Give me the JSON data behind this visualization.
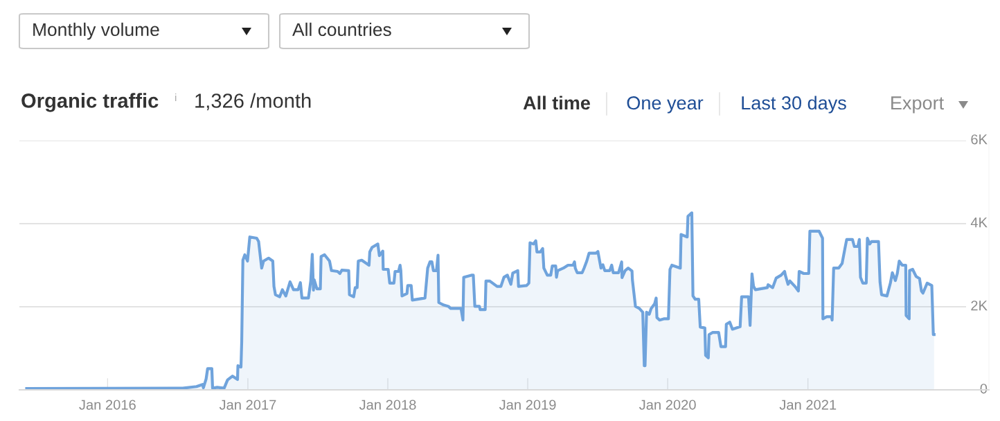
{
  "chart_data": {
    "type": "area",
    "title": "Organic traffic",
    "subtitle": "1,326 /month",
    "annotations": [
      "Monthly volume",
      "All countries",
      "All time",
      "One year",
      "Last 30 days",
      "Export",
      "i"
    ],
    "xlim": [
      "2015-05-16",
      "2022-04-18"
    ],
    "ylim": [
      0,
      6000
    ],
    "xticks": [
      {
        "value": "2016-01-01",
        "label": "Jan 2016"
      },
      {
        "value": "2017-01-01",
        "label": "Jan 2017"
      },
      {
        "value": "2018-01-01",
        "label": "Jan 2018"
      },
      {
        "value": "2019-01-01",
        "label": "Jan 2019"
      },
      {
        "value": "2020-01-01",
        "label": "Jan 2020"
      },
      {
        "value": "2021-01-01",
        "label": "Jan 2021"
      }
    ],
    "yticks": [
      0,
      {
        "value": 2000,
        "label": "2K"
      },
      {
        "value": 4000,
        "label": "4K"
      },
      {
        "value": 6000,
        "label": "6K"
      }
    ],
    "grid": "y",
    "marker": "none",
    "line_style": "solid",
    "series": [
      {
        "color": "#6fa3dc",
        "x": [
          "2015-06-04",
          "2016-07-15",
          "2016-08-20",
          "2016-09-05",
          "2016-09-07",
          "2016-09-14",
          "2016-09-18",
          "2016-09-29",
          "2016-10-01",
          "2016-10-13",
          "2016-10-31",
          "2016-11-09",
          "2016-11-22",
          "2016-12-05",
          "2016-12-06",
          "2016-12-14",
          "2016-12-16",
          "2016-12-19",
          "2016-12-24",
          "2016-12-31",
          "2017-01-06",
          "2017-01-24",
          "2017-01-29",
          "2017-02-06",
          "2017-02-11",
          "2017-02-24",
          "2017-03-07",
          "2017-03-10",
          "2017-03-14",
          "2017-03-25",
          "2017-04-01",
          "2017-04-10",
          "2017-04-21",
          "2017-04-30",
          "2017-05-12",
          "2017-05-18",
          "2017-05-22",
          "2017-06-08",
          "2017-06-14",
          "2017-06-18",
          "2017-06-21",
          "2017-06-23",
          "2017-06-30",
          "2017-07-09",
          "2017-07-11",
          "2017-07-20",
          "2017-08-02",
          "2017-08-07",
          "2017-08-23",
          "2017-08-29",
          "2017-09-03",
          "2017-09-21",
          "2017-09-23",
          "2017-10-04",
          "2017-10-08",
          "2017-10-13",
          "2017-10-16",
          "2017-10-25",
          "2017-11-13",
          "2017-11-15",
          "2017-11-21",
          "2017-12-06",
          "2017-12-10",
          "2017-12-19",
          "2017-12-20",
          "2018-01-02",
          "2018-01-06",
          "2018-01-17",
          "2018-01-20",
          "2018-01-29",
          "2018-02-02",
          "2018-02-04",
          "2018-02-07",
          "2018-02-20",
          "2018-02-22",
          "2018-03-03",
          "2018-03-06",
          "2018-04-08",
          "2018-04-15",
          "2018-04-21",
          "2018-04-26",
          "2018-04-30",
          "2018-05-08",
          "2018-05-12",
          "2018-05-14",
          "2018-05-27",
          "2018-06-08",
          "2018-06-14",
          "2018-07-11",
          "2018-07-16",
          "2018-07-18",
          "2018-08-07",
          "2018-08-12",
          "2018-08-16",
          "2018-08-28",
          "2018-08-30",
          "2018-09-12",
          "2018-09-14",
          "2018-09-24",
          "2018-10-13",
          "2018-10-23",
          "2018-10-31",
          "2018-11-09",
          "2018-11-18",
          "2018-11-23",
          "2018-12-06",
          "2018-12-08",
          "2018-12-29",
          "2019-01-04",
          "2019-01-07",
          "2019-01-16",
          "2019-01-22",
          "2019-01-25",
          "2019-02-03",
          "2019-02-09",
          "2019-02-12",
          "2019-02-21",
          "2019-03-02",
          "2019-03-06",
          "2019-03-15",
          "2019-03-17",
          "2019-03-20",
          "2019-04-04",
          "2019-04-16",
          "2019-04-29",
          "2019-05-03",
          "2019-05-05",
          "2019-05-10",
          "2019-05-23",
          "2019-05-28",
          "2019-06-04",
          "2019-06-10",
          "2019-06-28",
          "2019-07-03",
          "2019-07-11",
          "2019-07-16",
          "2019-07-21",
          "2019-08-03",
          "2019-08-08",
          "2019-08-12",
          "2019-08-26",
          "2019-09-03",
          "2019-09-04",
          "2019-09-12",
          "2019-09-20",
          "2019-09-30",
          "2019-10-01",
          "2019-10-09",
          "2019-10-19",
          "2019-10-28",
          "2019-11-01",
          "2019-11-03",
          "2019-11-07",
          "2019-11-14",
          "2019-11-19",
          "2019-11-28",
          "2019-12-02",
          "2019-12-04",
          "2019-12-11",
          "2019-12-22",
          "2020-01-03",
          "2020-01-07",
          "2020-01-12",
          "2020-02-03",
          "2020-02-05",
          "2020-02-21",
          "2020-02-23",
          "2020-03-04",
          "2020-03-07",
          "2020-03-13",
          "2020-03-22",
          "2020-03-26",
          "2020-04-07",
          "2020-04-09",
          "2020-04-16",
          "2020-04-18",
          "2020-04-27",
          "2020-05-13",
          "2020-05-19",
          "2020-05-31",
          "2020-06-02",
          "2020-06-11",
          "2020-06-18",
          "2020-07-08",
          "2020-07-12",
          "2020-07-30",
          "2020-08-03",
          "2020-08-08",
          "2020-08-12",
          "2020-08-17",
          "2020-09-17",
          "2020-09-19",
          "2020-10-01",
          "2020-10-10",
          "2020-10-23",
          "2020-11-01",
          "2020-11-03",
          "2020-11-10",
          "2020-11-15",
          "2020-11-28",
          "2020-12-07",
          "2020-12-09",
          "2020-12-21",
          "2021-01-03",
          "2021-01-06",
          "2021-01-30",
          "2021-02-08",
          "2021-02-09",
          "2021-02-19",
          "2021-03-03",
          "2021-03-05",
          "2021-03-09",
          "2021-03-22",
          "2021-03-31",
          "2021-04-08",
          "2021-04-12",
          "2021-04-27",
          "2021-05-02",
          "2021-05-11",
          "2021-05-15",
          "2021-05-18",
          "2021-05-24",
          "2021-06-02",
          "2021-06-05",
          "2021-06-11",
          "2021-06-16",
          "2021-07-04",
          "2021-07-08",
          "2021-07-12",
          "2021-07-26",
          "2021-08-04",
          "2021-08-09",
          "2021-08-17",
          "2021-08-22",
          "2021-08-27",
          "2021-09-04",
          "2021-09-13",
          "2021-09-14",
          "2021-09-22",
          "2021-09-23",
          "2021-10-01",
          "2021-10-10",
          "2021-10-19",
          "2021-10-24",
          "2021-10-28",
          "2021-11-08",
          "2021-11-20",
          "2021-11-24",
          "2021-11-26"
        ],
        "values": [
          30,
          40,
          80,
          130,
          50,
          260,
          510,
          510,
          40,
          60,
          40,
          240,
          330,
          250,
          580,
          550,
          1180,
          3120,
          3250,
          3100,
          3680,
          3650,
          3570,
          2930,
          3100,
          3170,
          3100,
          2490,
          2290,
          2240,
          2410,
          2260,
          2600,
          2410,
          2410,
          2580,
          2210,
          2210,
          2620,
          3260,
          2400,
          2650,
          2430,
          2430,
          3210,
          3250,
          3100,
          2870,
          2850,
          2800,
          2880,
          2870,
          2290,
          2240,
          2460,
          2460,
          3100,
          3120,
          3000,
          3320,
          3430,
          3510,
          3230,
          3340,
          2900,
          2900,
          2570,
          2570,
          2850,
          2850,
          3000,
          2870,
          2260,
          2320,
          2510,
          2510,
          2160,
          2210,
          2930,
          3080,
          3080,
          2870,
          2870,
          3240,
          2100,
          2040,
          2010,
          1960,
          1960,
          1680,
          2710,
          2760,
          2760,
          2010,
          2010,
          1930,
          1930,
          2620,
          2620,
          2490,
          2490,
          2710,
          2760,
          2540,
          2810,
          2870,
          2490,
          2510,
          2570,
          3540,
          3510,
          3590,
          3320,
          3320,
          3400,
          2930,
          2760,
          2760,
          2980,
          2980,
          2710,
          2870,
          2930,
          3000,
          3000,
          3080,
          2930,
          2820,
          2820,
          2930,
          3100,
          3290,
          3290,
          3330,
          2930,
          3010,
          2870,
          2870,
          3000,
          2820,
          2820,
          3080,
          2700,
          2870,
          2930,
          2860,
          2650,
          2010,
          1960,
          1870,
          580,
          580,
          1870,
          1820,
          1960,
          2070,
          2210,
          1740,
          1680,
          1710,
          1710,
          2900,
          3000,
          2930,
          3740,
          3680,
          4180,
          4260,
          2260,
          2180,
          2180,
          1510,
          1490,
          830,
          770,
          1330,
          1380,
          1380,
          1040,
          1040,
          1580,
          1630,
          1460,
          1520,
          2240,
          2240,
          1550,
          2790,
          2490,
          2410,
          2460,
          2530,
          2460,
          2690,
          2760,
          2850,
          2760,
          2540,
          2620,
          2490,
          2380,
          2850,
          2800,
          2800,
          3820,
          3820,
          3650,
          1710,
          1760,
          1760,
          1680,
          2930,
          2930,
          3040,
          3430,
          3620,
          3620,
          3450,
          3450,
          3620,
          2710,
          2570,
          2570,
          3650,
          3510,
          3570,
          3570,
          2590,
          2290,
          2260,
          2570,
          2820,
          2630,
          2800,
          3100,
          3000,
          3000,
          1790,
          1710,
          2870,
          2900,
          2730,
          2680,
          2380,
          2330,
          2570,
          2510,
          1330,
          1330
        ]
      }
    ]
  }
}
